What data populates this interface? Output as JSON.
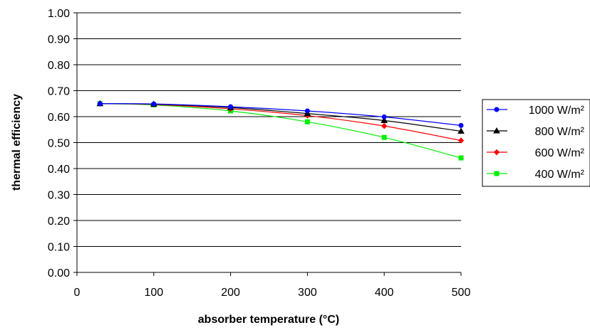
{
  "chart_data": {
    "type": "line",
    "xlabel": "absorber temperature (°C)",
    "ylabel": "thermal efficiency",
    "xlim": [
      0,
      500
    ],
    "ylim": [
      0,
      1
    ],
    "x_ticks": [
      0,
      100,
      200,
      300,
      400,
      500
    ],
    "x_tick_labels": [
      "0",
      "100",
      "200",
      "300",
      "400",
      "500"
    ],
    "y_ticks": [
      0,
      0.1,
      0.2,
      0.3,
      0.4,
      0.5,
      0.6,
      0.7,
      0.8,
      0.9,
      1.0
    ],
    "y_tick_labels": [
      "0.00",
      "0.10",
      "0.20",
      "0.30",
      "0.40",
      "0.50",
      "0.60",
      "0.70",
      "0.80",
      "0.90",
      "1.00"
    ],
    "grid": "horizontal",
    "legend_position": "right",
    "x": [
      30,
      100,
      200,
      300,
      400,
      500
    ],
    "series": [
      {
        "name": "1000 W/m²",
        "color": "#0000ff",
        "marker": "circle",
        "values": [
          0.65,
          0.649,
          0.638,
          0.622,
          0.599,
          0.566
        ]
      },
      {
        "name": "800 W/m²",
        "color": "#000000",
        "marker": "triangle",
        "values": [
          0.65,
          0.648,
          0.635,
          0.612,
          0.585,
          0.544
        ]
      },
      {
        "name": "600 W/m²",
        "color": "#ff0000",
        "marker": "diamond",
        "values": [
          0.65,
          0.647,
          0.63,
          0.604,
          0.564,
          0.508
        ]
      },
      {
        "name": "400 W/m²",
        "color": "#00ee00",
        "marker": "square",
        "values": [
          0.65,
          0.645,
          0.622,
          0.58,
          0.52,
          0.441
        ]
      }
    ]
  }
}
